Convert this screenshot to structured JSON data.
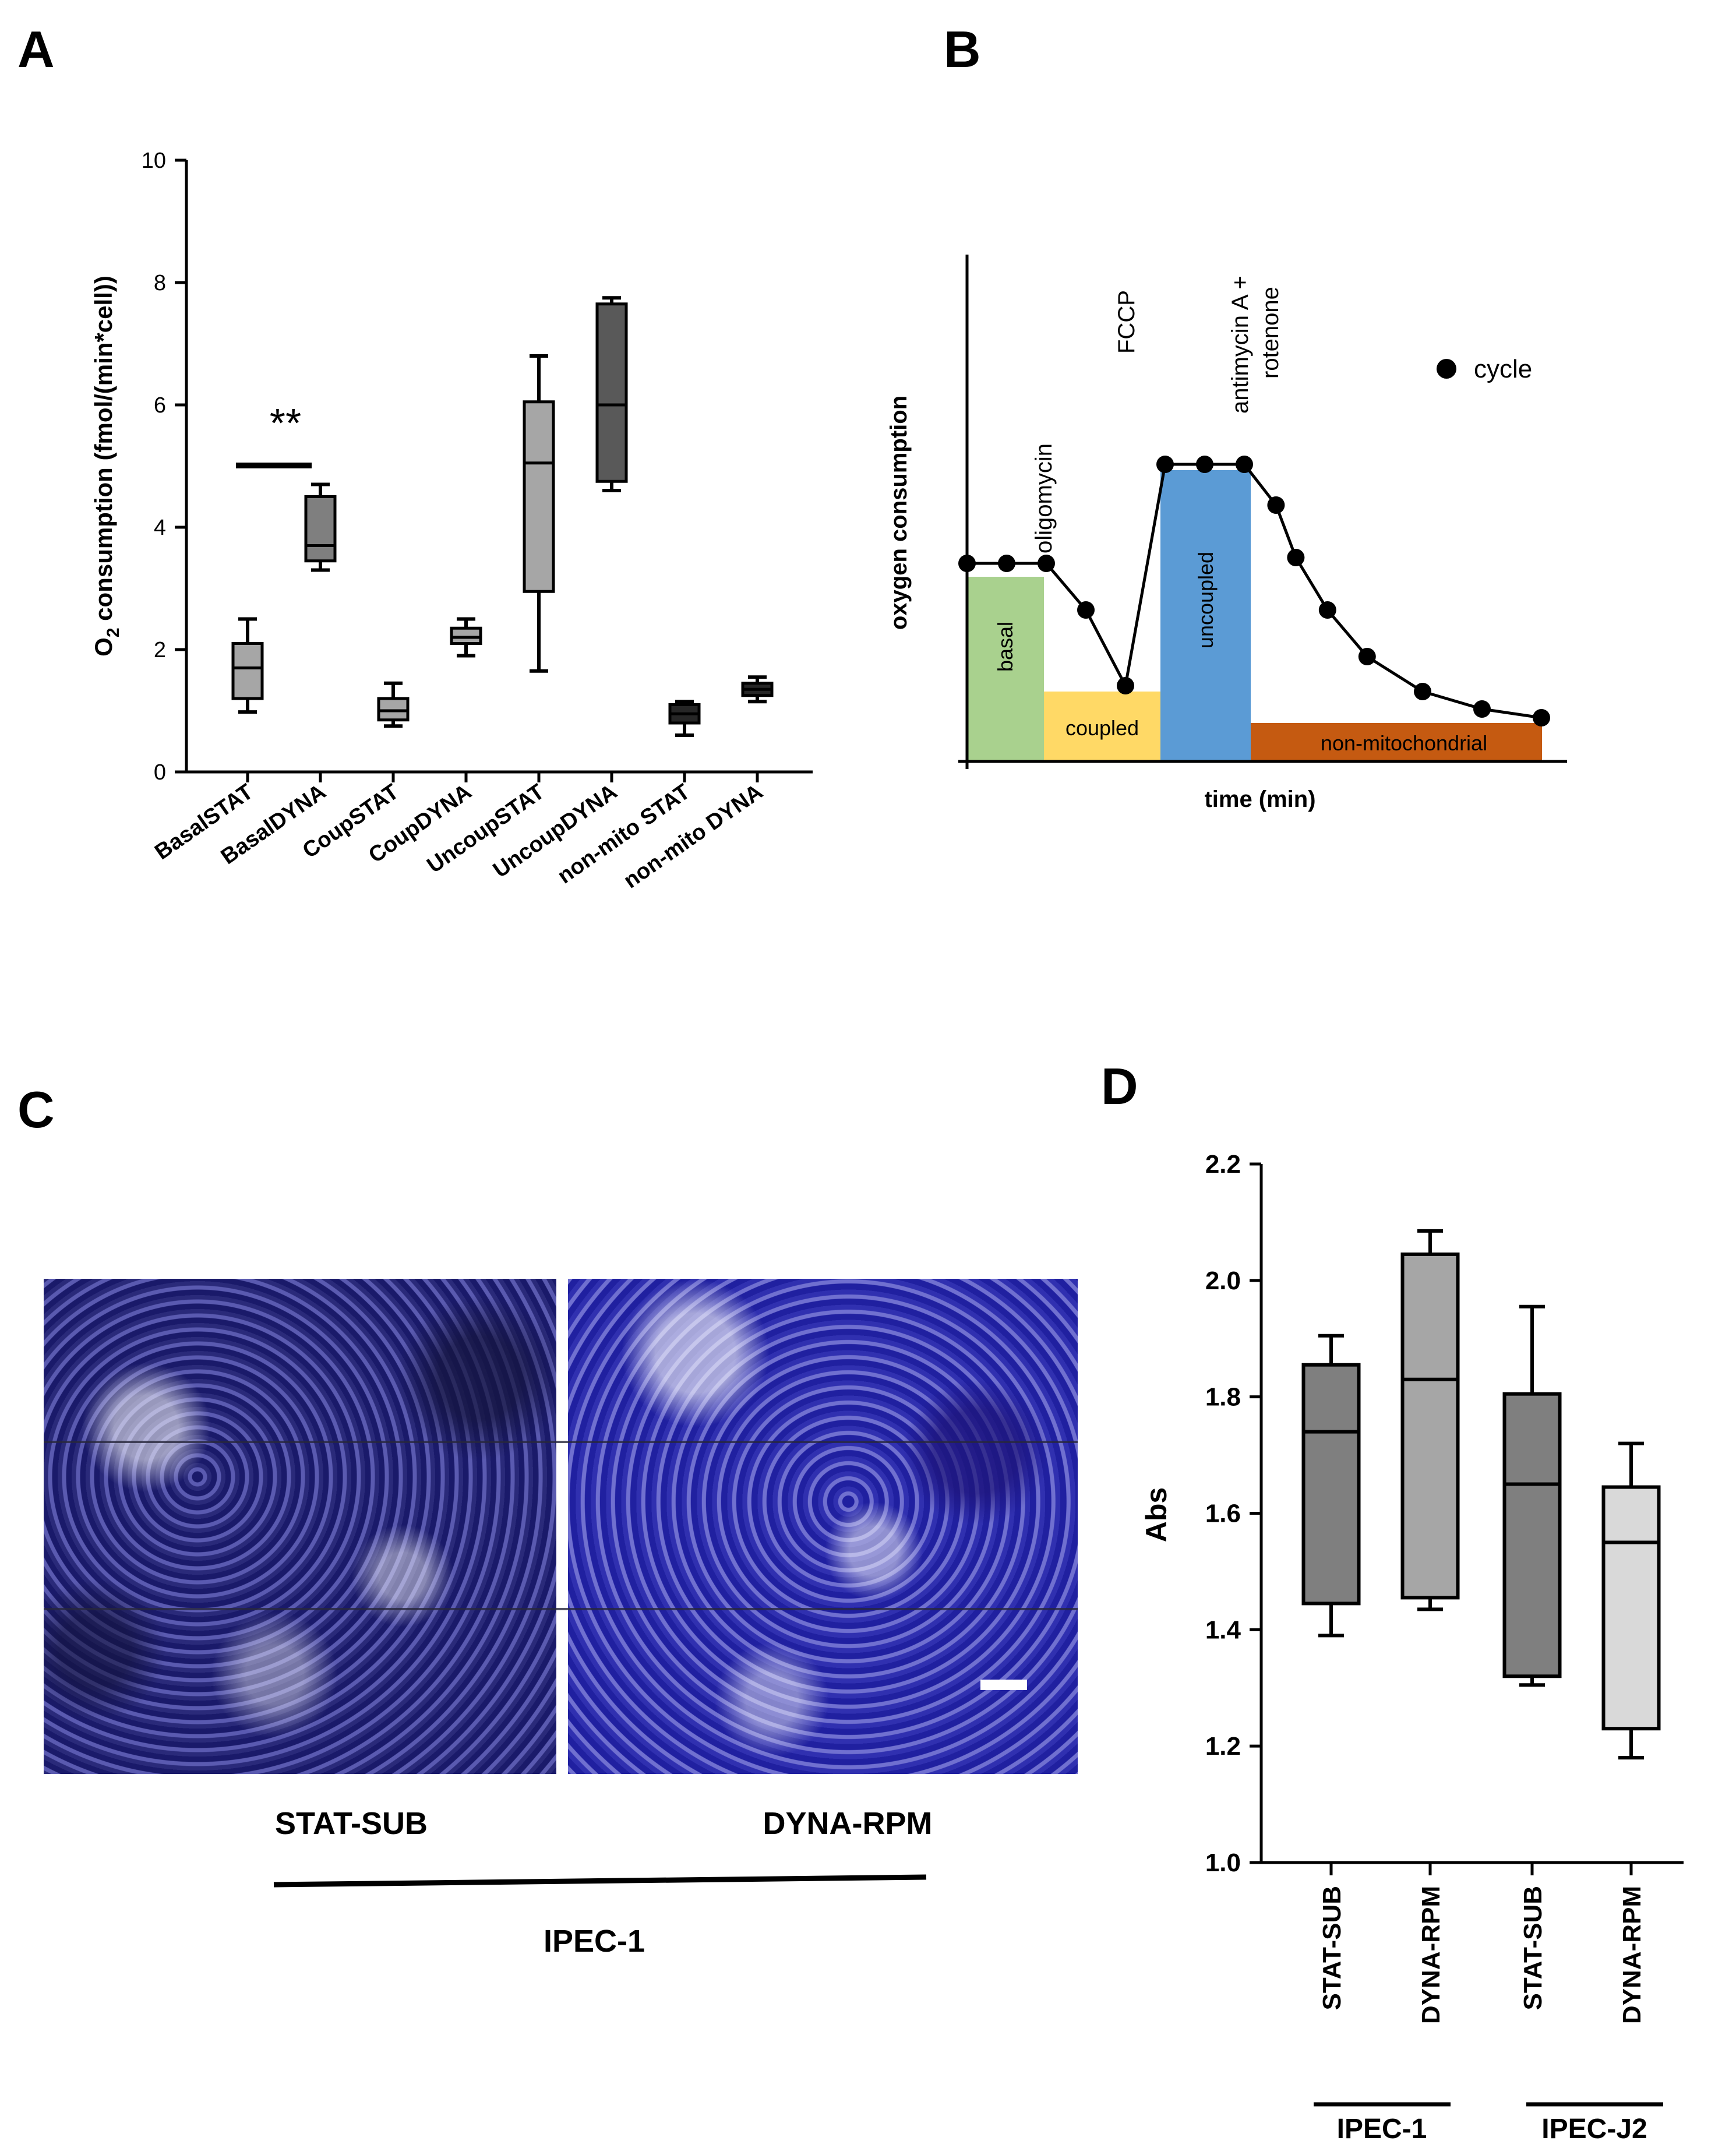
{
  "panels": {
    "a": "A",
    "b": "B",
    "c": "C",
    "d": "D"
  },
  "chart_data": [
    {
      "type": "boxplot",
      "panel": "A",
      "ylabel_prefix": "O",
      "ylabel_sub": "2",
      "ylabel_rest": " consumption (fmol/(min*cell))",
      "ylim": [
        0,
        10
      ],
      "yticks": [
        "0",
        "2",
        "4",
        "6",
        "8",
        "10"
      ],
      "significance": "**",
      "colors": {
        "light": "#a6a6a6",
        "mid": "#7f7f7f",
        "dark": "#595959",
        "black": "#262626"
      },
      "categories": [
        "BasalSTAT",
        "BasalDYNA",
        "CoupSTAT",
        "CoupDYNA",
        "UncoupSTAT",
        "UncoupDYNA",
        "non-mito STAT",
        "non-mito DYNA"
      ],
      "series": [
        {
          "name": "BasalSTAT",
          "min": 0.98,
          "q1": 1.2,
          "median": 1.7,
          "q3": 2.1,
          "max": 2.5
        },
        {
          "name": "BasalDYNA",
          "min": 3.3,
          "q1": 3.45,
          "median": 3.7,
          "q3": 4.5,
          "max": 4.7
        },
        {
          "name": "CoupSTAT",
          "min": 0.75,
          "q1": 0.85,
          "median": 1.0,
          "q3": 1.2,
          "max": 1.45
        },
        {
          "name": "CoupDYNA",
          "min": 1.9,
          "q1": 2.1,
          "median": 2.2,
          "q3": 2.35,
          "max": 2.5
        },
        {
          "name": "UncoupSTAT",
          "min": 1.65,
          "q1": 2.95,
          "median": 5.05,
          "q3": 6.05,
          "max": 6.8
        },
        {
          "name": "UncoupDYNA",
          "min": 4.6,
          "q1": 4.75,
          "median": 6.0,
          "q3": 7.65,
          "max": 7.75
        },
        {
          "name": "non-mito STAT",
          "min": 0.6,
          "q1": 0.8,
          "median": 0.95,
          "q3": 1.1,
          "max": 1.15
        },
        {
          "name": "non-mito DYNA",
          "min": 1.15,
          "q1": 1.25,
          "median": 1.35,
          "q3": 1.45,
          "max": 1.55
        }
      ]
    },
    {
      "type": "line",
      "panel": "B",
      "xlabel": "time (min)",
      "ylabel": "oxygen consumption",
      "legend": "cycle",
      "injections": [
        "oligomycin",
        "FCCP",
        "antimycin A +",
        "rotenone"
      ],
      "regions": [
        {
          "label": "basal",
          "color": "#a9d18e"
        },
        {
          "label": "coupled",
          "color": "#ffd966"
        },
        {
          "label": "uncoupled",
          "color": "#5b9bd5"
        },
        {
          "label": "non-mitochondrial",
          "color": "#c55a11"
        }
      ],
      "points": [
        {
          "x": 0,
          "y": 3.4
        },
        {
          "x": 1,
          "y": 3.4
        },
        {
          "x": 2,
          "y": 3.4
        },
        {
          "x": 3,
          "y": 2.6
        },
        {
          "x": 4,
          "y": 1.3
        },
        {
          "x": 5,
          "y": 5.1
        },
        {
          "x": 6,
          "y": 5.1
        },
        {
          "x": 7,
          "y": 5.1
        },
        {
          "x": 7.8,
          "y": 4.4
        },
        {
          "x": 8.3,
          "y": 3.5
        },
        {
          "x": 9.1,
          "y": 2.6
        },
        {
          "x": 10.1,
          "y": 1.8
        },
        {
          "x": 11.5,
          "y": 1.2
        },
        {
          "x": 13,
          "y": 0.9
        },
        {
          "x": 14.5,
          "y": 0.75
        }
      ]
    },
    {
      "type": "boxplot",
      "panel": "D",
      "ylabel": "Abs",
      "ylim": [
        1.0,
        2.2
      ],
      "yticks": [
        "1.0",
        "1.2",
        "1.4",
        "1.6",
        "1.8",
        "2.0",
        "2.2"
      ],
      "categories": [
        "STAT-SUB",
        "DYNA-RPM",
        "STAT-SUB",
        "DYNA-RPM"
      ],
      "groups": [
        "IPEC-1",
        "IPEC-J2"
      ],
      "colors": {
        "dark": "#7f7f7f",
        "light": "#a6a6a6",
        "lighter": "#d9d9d9"
      },
      "series": [
        {
          "name": "STAT-SUB",
          "group": "IPEC-1",
          "min": 1.39,
          "q1": 1.445,
          "median": 1.74,
          "q3": 1.855,
          "max": 1.905
        },
        {
          "name": "DYNA-RPM",
          "group": "IPEC-1",
          "min": 1.435,
          "q1": 1.455,
          "median": 1.83,
          "q3": 2.045,
          "max": 2.085
        },
        {
          "name": "STAT-SUB",
          "group": "IPEC-J2",
          "min": 1.305,
          "q1": 1.32,
          "median": 1.65,
          "q3": 1.805,
          "max": 1.955
        },
        {
          "name": "DYNA-RPM",
          "group": "IPEC-J2",
          "min": 1.18,
          "q1": 1.23,
          "median": 1.55,
          "q3": 1.645,
          "max": 1.72
        }
      ]
    }
  ],
  "micrograph": {
    "left_label": "STAT-SUB",
    "right_label": "DYNA-RPM",
    "group_label": "IPEC-1"
  }
}
